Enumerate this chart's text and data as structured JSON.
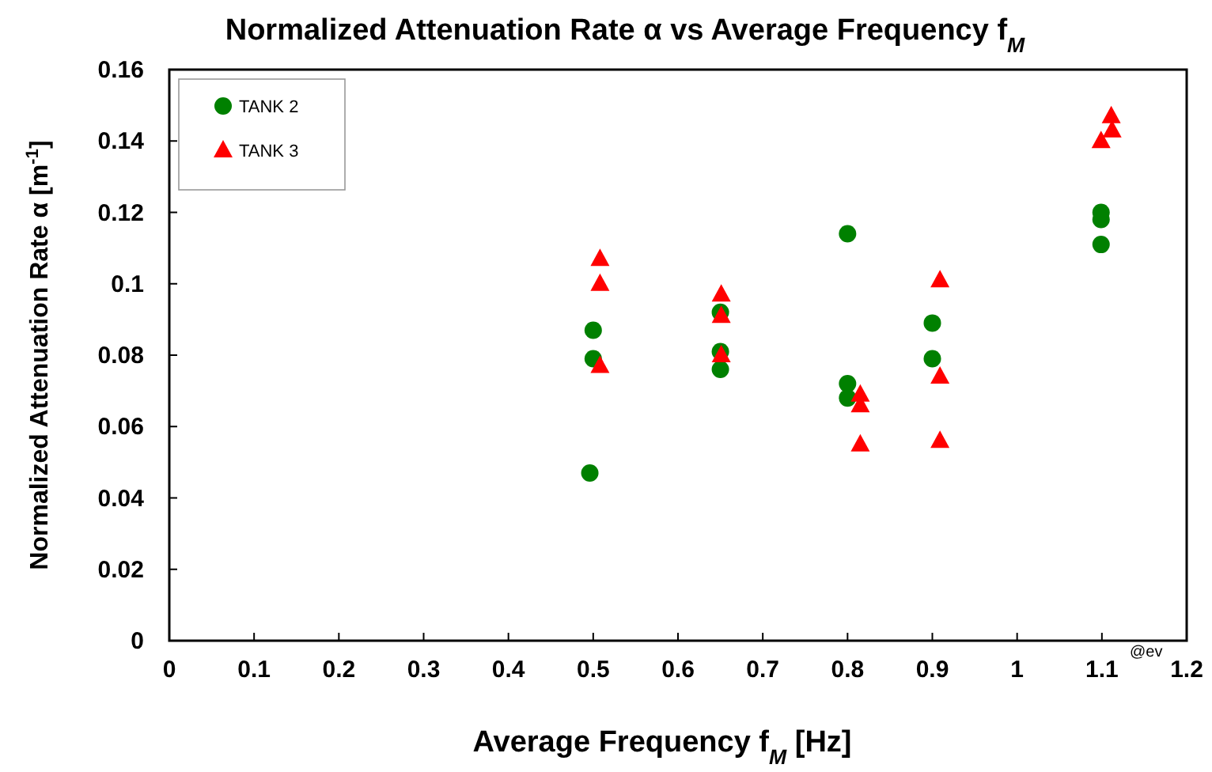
{
  "chart_data": {
    "type": "scatter",
    "title": "Normalized  Attenuation Rate α vs Average Frequency f$_{M}$",
    "xlabel": "Average Frequency f$_{M}$ [Hz]",
    "ylabel": "Normalized Attenuation Rate α [m$^{-1}$]",
    "xlim": [
      0,
      1.2
    ],
    "xticks": [
      0,
      0.1,
      0.2,
      0.3,
      0.4,
      0.5,
      0.6,
      0.7,
      0.8,
      0.9,
      1,
      1.1,
      1.2
    ],
    "ylim": [
      0,
      0.16
    ],
    "yticks": [
      0,
      0.02,
      0.04,
      0.06,
      0.08,
      0.1,
      0.12,
      0.14,
      0.16
    ],
    "grid": false,
    "legend": "top left",
    "annotations": [
      "@ev"
    ],
    "series": [
      {
        "name": "TANK 2",
        "color": "#008000",
        "marker": "circle",
        "x": [
          0.5,
          0.5,
          0.496,
          0.65,
          0.65,
          0.65,
          0.8,
          0.8,
          0.8,
          0.9,
          0.9,
          1.099,
          1.099,
          1.099
        ],
        "values": [
          0.087,
          0.079,
          0.047,
          0.092,
          0.081,
          0.076,
          0.114,
          0.072,
          0.068,
          0.089,
          0.079,
          0.12,
          0.118,
          0.111
        ]
      },
      {
        "name": "TANK 3",
        "color": "#ff0000",
        "marker": "triangle",
        "x": [
          0.508,
          0.508,
          0.508,
          0.651,
          0.651,
          0.651,
          0.815,
          0.815,
          0.815,
          0.909,
          0.909,
          0.909,
          1.111,
          1.112,
          1.099
        ],
        "values": [
          0.107,
          0.1,
          0.077,
          0.097,
          0.091,
          0.08,
          0.069,
          0.066,
          0.055,
          0.101,
          0.074,
          0.056,
          0.147,
          0.143,
          0.14
        ]
      }
    ]
  }
}
